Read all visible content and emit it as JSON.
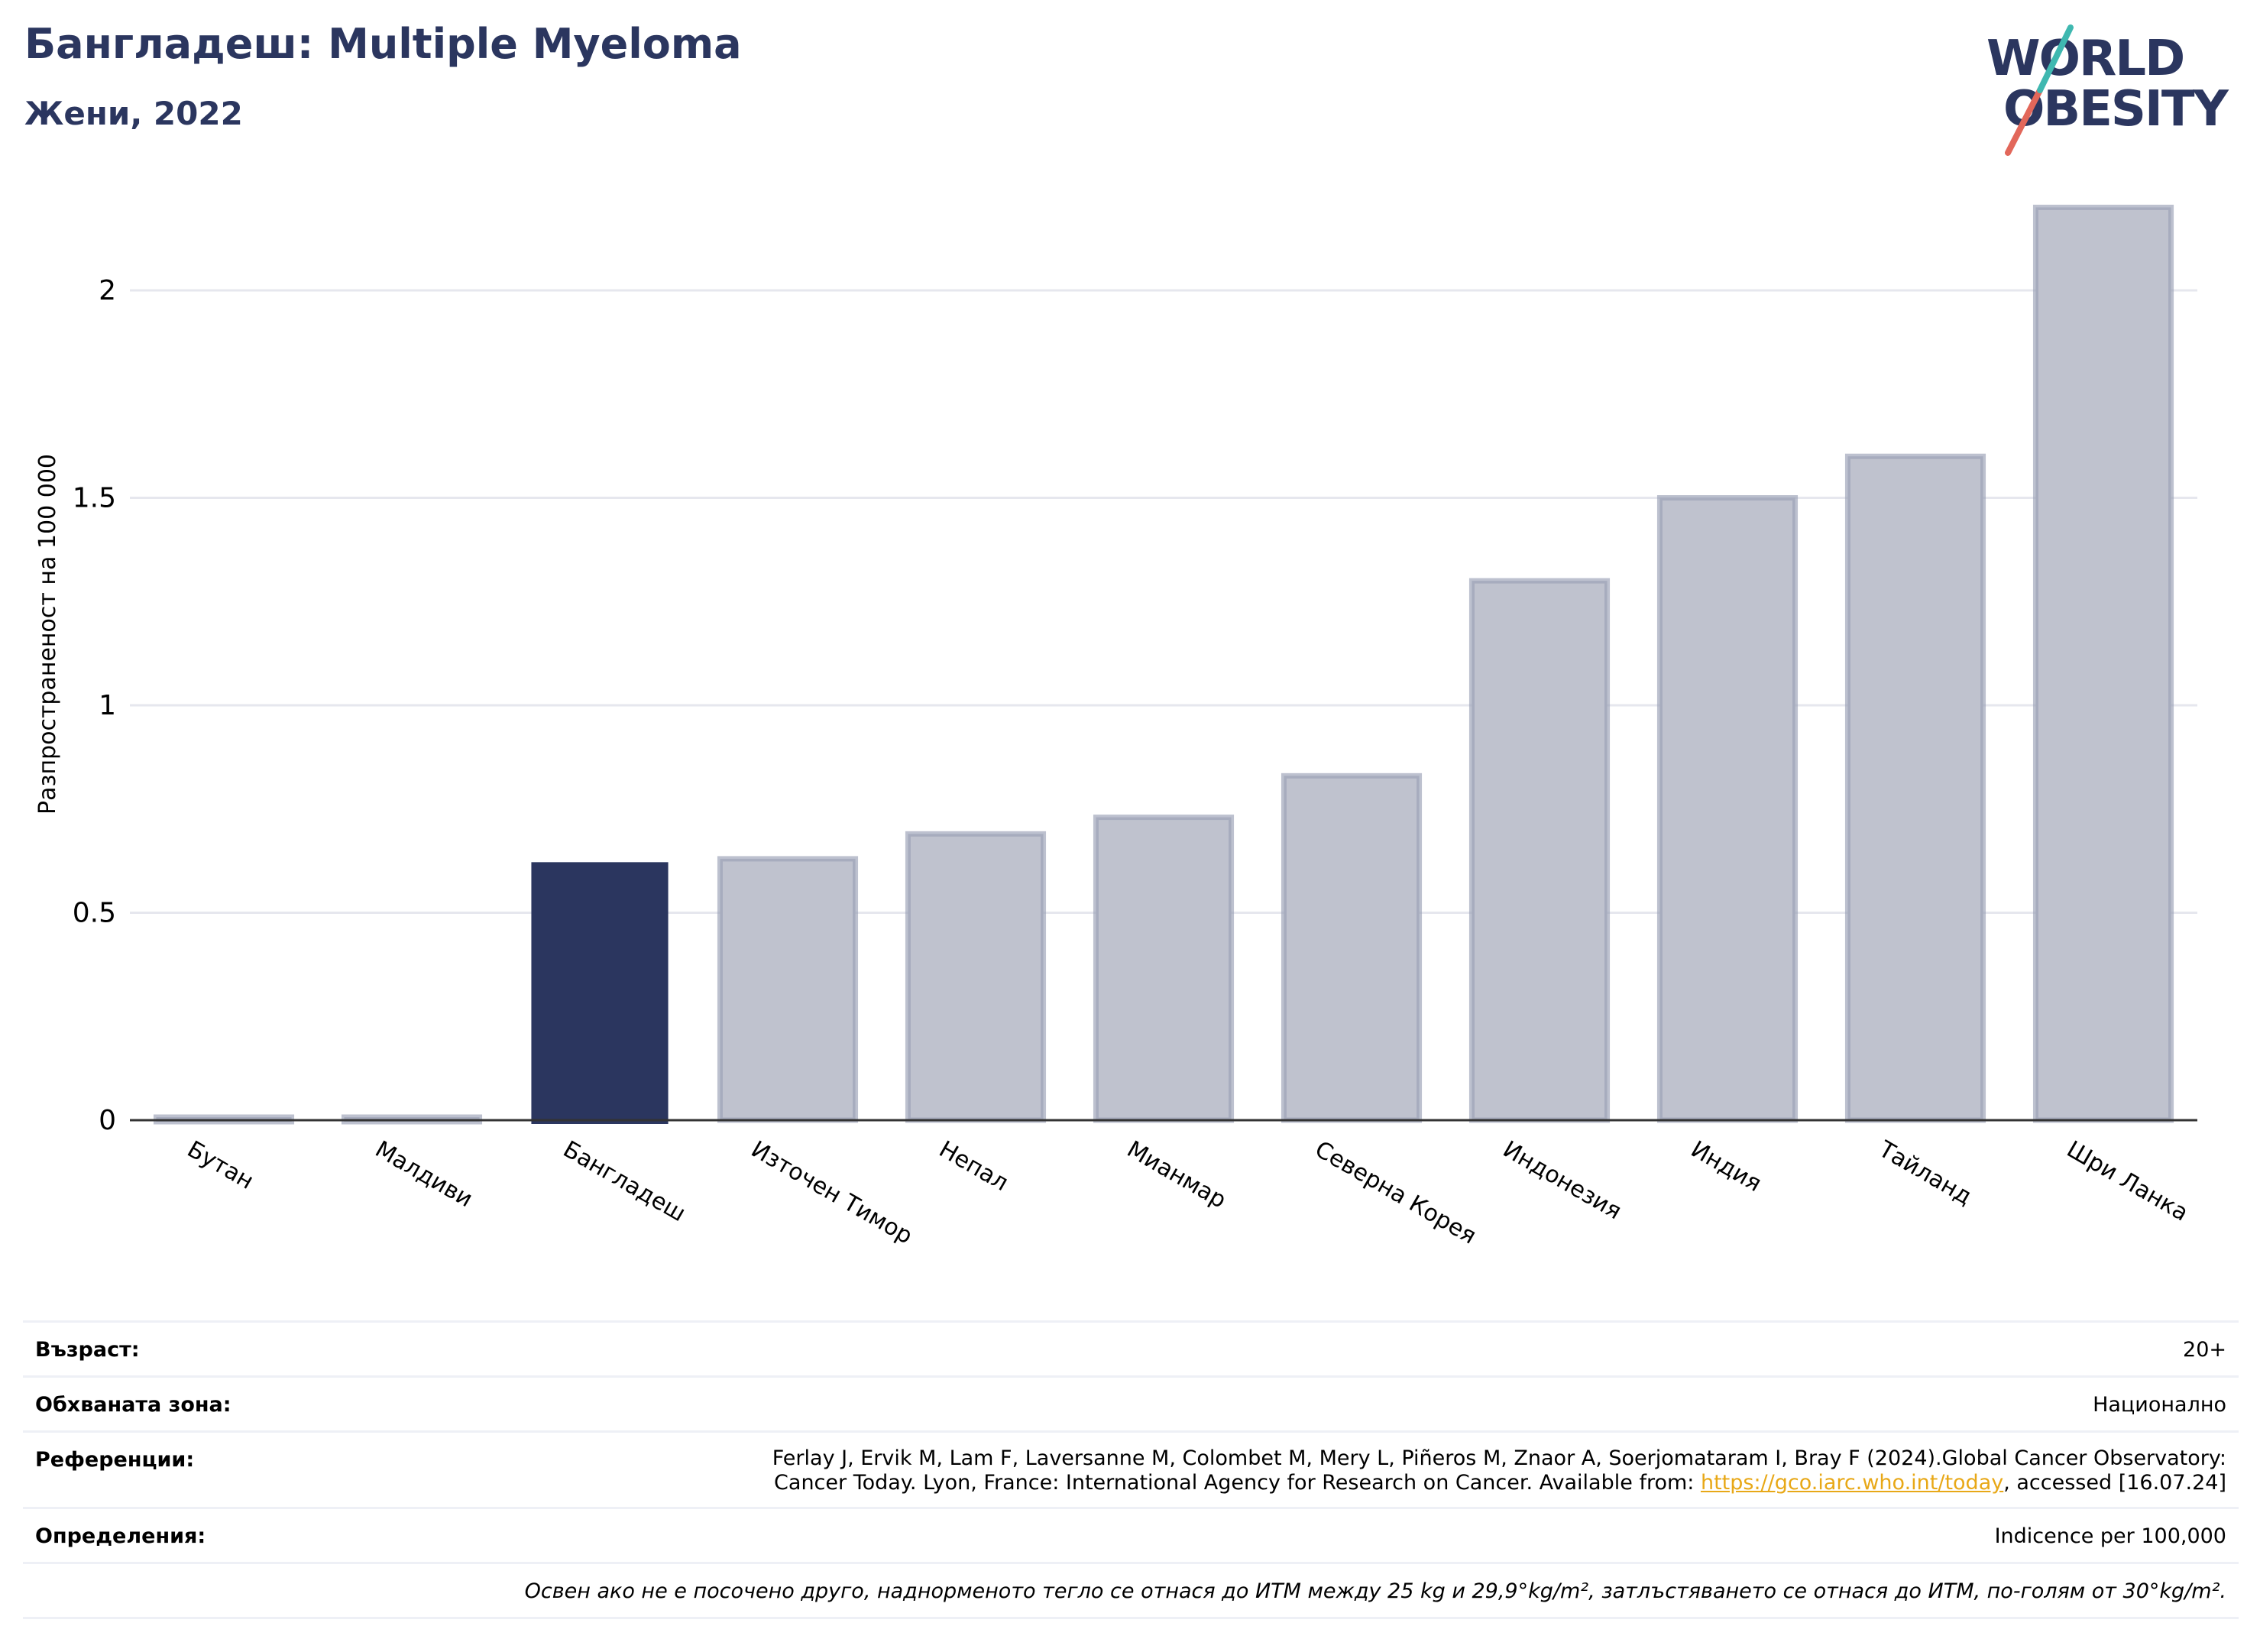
{
  "header": {
    "title": "Бангладеш: Multiple Myeloma",
    "subtitle": "Жени, 2022"
  },
  "logo": {
    "line1": "WORLD",
    "line2": "OBESITY"
  },
  "colors": {
    "highlight": "#2b365f",
    "bar": "#bfc2ce",
    "bar_border": "#9aa0b6",
    "grid": "#e6e7ee",
    "link": "#e8a817"
  },
  "chart_data": {
    "type": "bar",
    "ylabel": "Разпространеност  на 100 000",
    "categories": [
      "Бутан",
      "Малдиви",
      "Бангладеш",
      "Източен Тимор",
      "Непал",
      "Мианмар",
      "Северна Корея",
      "Индонезия",
      "Индия",
      "Тайланд",
      "Шри Ланка"
    ],
    "values": [
      0.0,
      0.0,
      0.62,
      0.63,
      0.69,
      0.73,
      0.83,
      1.3,
      1.5,
      1.6,
      2.2
    ],
    "highlight": "Бангладеш",
    "ylim": [
      0,
      2.3
    ],
    "yticks": [
      0,
      0.5,
      1,
      1.5,
      2
    ],
    "ytick_labels": [
      "0",
      "0.5",
      "1",
      "1.5",
      "2"
    ],
    "grid": true
  },
  "meta": {
    "age_label": "Възраст:",
    "age_value": "20+",
    "area_label": "Обхваната зона:",
    "area_value": "Национално",
    "refs_label": "Референции:",
    "refs_line1": "Ferlay J, Ervik M, Lam F, Laversanne M, Colombet M, Mery L, Piñeros M, Znaor A, Soerjomataram I, Bray F (2024).Global Cancer Observatory:",
    "refs_line2_pre": "Cancer Today. Lyon, France: International Agency for Research on Cancer. Available from: ",
    "refs_link": "https://gco.iarc.who.int/today",
    "refs_line2_post": ", accessed [16.07.24]",
    "defs_label": "Определения:",
    "defs_value": "Indicence per 100,000",
    "footnote": "Освен ако не е посочено друго, наднорменото тегло се отнася до ИТМ между 25 kg и 29,9°kg/m², затлъстяването се отнася до ИТМ, по-голям от 30°kg/m²."
  }
}
